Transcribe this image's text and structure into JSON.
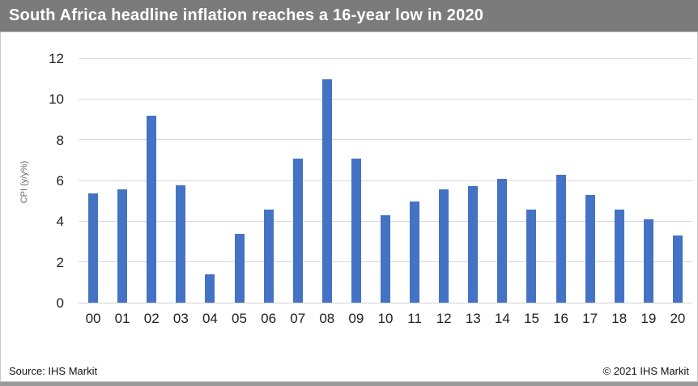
{
  "header": {
    "title": "South Africa headline inflation reaches a 16-year low in 2020",
    "bg_color": "#7b7b7b",
    "text_color": "#ffffff"
  },
  "footer": {
    "source": "Source: IHS Markit",
    "copyright": "© 2021 IHS Markit",
    "strip_color": "#9a9a9a"
  },
  "chart_data": {
    "type": "bar",
    "title": "South Africa headline inflation reaches a 16-year low in 2020",
    "xlabel": "",
    "ylabel": "CPI (y/y%)",
    "categories": [
      "00",
      "01",
      "02",
      "03",
      "04",
      "05",
      "06",
      "07",
      "08",
      "09",
      "10",
      "11",
      "12",
      "13",
      "14",
      "15",
      "16",
      "17",
      "18",
      "19",
      "20"
    ],
    "values": [
      5.4,
      5.6,
      9.2,
      5.8,
      1.4,
      3.4,
      4.6,
      7.1,
      11.0,
      7.1,
      4.3,
      5.0,
      5.6,
      5.75,
      6.1,
      4.6,
      6.3,
      5.3,
      4.6,
      4.1,
      3.3
    ],
    "ylim": [
      0,
      12
    ],
    "yticks": [
      0,
      2,
      4,
      6,
      8,
      10,
      12
    ],
    "grid": true,
    "legend": false,
    "bar_color": "#4472C4",
    "gridline_color": "#d9d9d9"
  }
}
